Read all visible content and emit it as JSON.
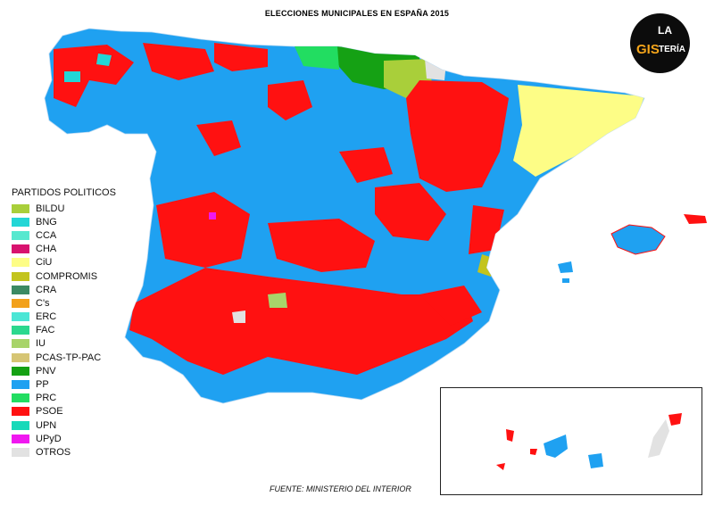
{
  "title": "ELECCIONES MUNICIPALES EN ESPAÑA 2015",
  "source": "FUENTE: MINISTERIO DEL INTERIOR",
  "logo": {
    "la": "LA",
    "gis": "GIS",
    "teria": "TERÍA"
  },
  "legend": {
    "title": "PARTIDOS POLITICOS",
    "items": [
      {
        "label": "BILDU",
        "color": "#a9cf3a"
      },
      {
        "label": "BNG",
        "color": "#23d6d6"
      },
      {
        "label": "CCA",
        "color": "#57e8cf"
      },
      {
        "label": "CHA",
        "color": "#d8136f"
      },
      {
        "label": "CiU",
        "color": "#fdfd86"
      },
      {
        "label": "COMPROMIS",
        "color": "#c3c41d"
      },
      {
        "label": "CRA",
        "color": "#3c8a63"
      },
      {
        "label": "C's",
        "color": "#f2a11b"
      },
      {
        "label": "ERC",
        "color": "#4be6d5"
      },
      {
        "label": "FAC",
        "color": "#2cd88e"
      },
      {
        "label": "IU",
        "color": "#a8d46a"
      },
      {
        "label": "PCAS-TP-PAC",
        "color": "#d6c574"
      },
      {
        "label": "PNV",
        "color": "#15a114"
      },
      {
        "label": "PP",
        "color": "#1fa1f1"
      },
      {
        "label": "PRC",
        "color": "#22dd61"
      },
      {
        "label": "PSOE",
        "color": "#ff1111"
      },
      {
        "label": "UPN",
        "color": "#17d9b9"
      },
      {
        "label": "UPyD",
        "color": "#f018f0"
      },
      {
        "label": "OTROS",
        "color": "#e2e2e2"
      }
    ]
  }
}
